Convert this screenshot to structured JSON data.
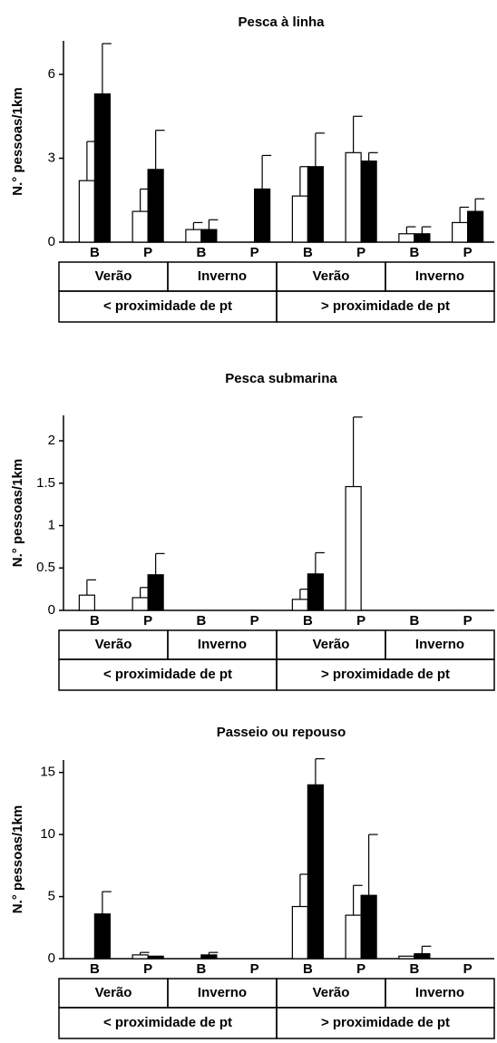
{
  "chart_data": [
    {
      "type": "bar",
      "title": "Pesca à linha",
      "y_label": "N.° pessoas/1km",
      "categories": [
        "B",
        "P",
        "B",
        "P",
        "B",
        "P",
        "B",
        "P"
      ],
      "seasons": [
        "Verão",
        "Inverno",
        "Verão",
        "Inverno"
      ],
      "proximity": [
        "< proximidade de pt",
        "> proximidade de pt"
      ],
      "ylim": [
        0,
        7.2
      ],
      "yticks": [
        0,
        3,
        6
      ],
      "series": [
        {
          "color": "#ffffff",
          "values": [
            2.2,
            1.1,
            0.45,
            0,
            1.65,
            3.2,
            0.3,
            0.7
          ],
          "errors": [
            1.4,
            0.8,
            0.25,
            null,
            1.05,
            1.3,
            0.25,
            0.55
          ]
        },
        {
          "color": "#000000",
          "values": [
            5.3,
            2.6,
            0.45,
            1.9,
            2.7,
            2.9,
            0.3,
            1.1
          ],
          "errors": [
            1.8,
            1.4,
            0.35,
            1.2,
            1.2,
            0.3,
            0.25,
            0.45
          ]
        }
      ]
    },
    {
      "type": "bar",
      "title": "Pesca submarina",
      "y_label": "N.° pessoas/1km",
      "categories": [
        "B",
        "P",
        "B",
        "P",
        "B",
        "P",
        "B",
        "P"
      ],
      "seasons": [
        "Verão",
        "Inverno",
        "Verão",
        "Inverno"
      ],
      "proximity": [
        "< proximidade de pt",
        "> proximidade de pt"
      ],
      "ylim": [
        0,
        2.3
      ],
      "yticks": [
        0,
        0.5,
        1,
        1.5,
        2
      ],
      "series": [
        {
          "color": "#ffffff",
          "values": [
            0.18,
            0.15,
            0,
            0,
            0.13,
            1.46,
            0,
            0
          ],
          "errors": [
            0.18,
            0.12,
            null,
            null,
            0.12,
            0.82,
            null,
            null
          ]
        },
        {
          "color": "#000000",
          "values": [
            0,
            0.42,
            0,
            0,
            0.43,
            0,
            0,
            0
          ],
          "errors": [
            null,
            0.25,
            null,
            null,
            0.25,
            null,
            null,
            null
          ]
        }
      ]
    },
    {
      "type": "bar",
      "title": "Passeio ou repouso",
      "y_label": "N.° pessoas/1km",
      "categories": [
        "B",
        "P",
        "B",
        "P",
        "B",
        "P",
        "B",
        "P"
      ],
      "seasons": [
        "Verão",
        "Inverno",
        "Verão",
        "Inverno"
      ],
      "proximity": [
        "< proximidade de pt",
        "> proximidade de pt"
      ],
      "ylim": [
        0,
        16
      ],
      "yticks": [
        0,
        5,
        10,
        15
      ],
      "series": [
        {
          "color": "#ffffff",
          "values": [
            0,
            0.3,
            0,
            0,
            4.2,
            3.5,
            0.2,
            0
          ],
          "errors": [
            null,
            0.2,
            null,
            null,
            2.6,
            2.4,
            null,
            null
          ]
        },
        {
          "color": "#000000",
          "values": [
            3.6,
            0.2,
            0.3,
            0,
            14.0,
            5.1,
            0.4,
            0
          ],
          "errors": [
            1.8,
            null,
            0.2,
            null,
            2.1,
            4.9,
            0.6,
            null
          ]
        }
      ]
    }
  ]
}
